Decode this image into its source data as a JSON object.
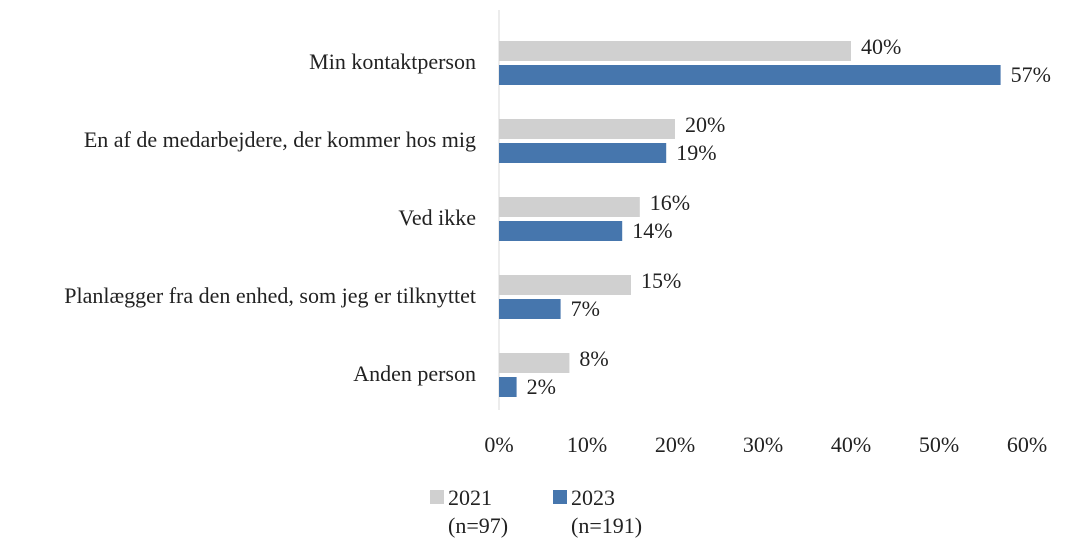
{
  "chart_data": {
    "type": "hbar",
    "categories": [
      "Min kontaktperson",
      "En af de medarbejdere, der kommer hos mig",
      "Ved ikke",
      "Planlægger fra den enhed, som jeg er tilknyttet",
      "Anden person"
    ],
    "series": [
      {
        "name": "2021 (n=97)",
        "color": "#d0d0d0",
        "values": [
          40,
          20,
          16,
          15,
          8
        ],
        "value_labels": [
          "40%",
          "20%",
          "16%",
          "15%",
          "8%"
        ]
      },
      {
        "name": "2023 (n=191)",
        "color": "#4676ad",
        "values": [
          57,
          19,
          14,
          7,
          2
        ],
        "value_labels": [
          "57%",
          "19%",
          "14%",
          "7%",
          "2%"
        ]
      }
    ],
    "xlim": [
      0,
      60
    ],
    "xticks": [
      {
        "value": 0,
        "label": "0%"
      },
      {
        "value": 10,
        "label": "10%"
      },
      {
        "value": 20,
        "label": "20%"
      },
      {
        "value": 30,
        "label": "30%"
      },
      {
        "value": 40,
        "label": "40%"
      },
      {
        "value": 50,
        "label": "50%"
      },
      {
        "value": 60,
        "label": "60%"
      }
    ],
    "legend": "bottom"
  }
}
